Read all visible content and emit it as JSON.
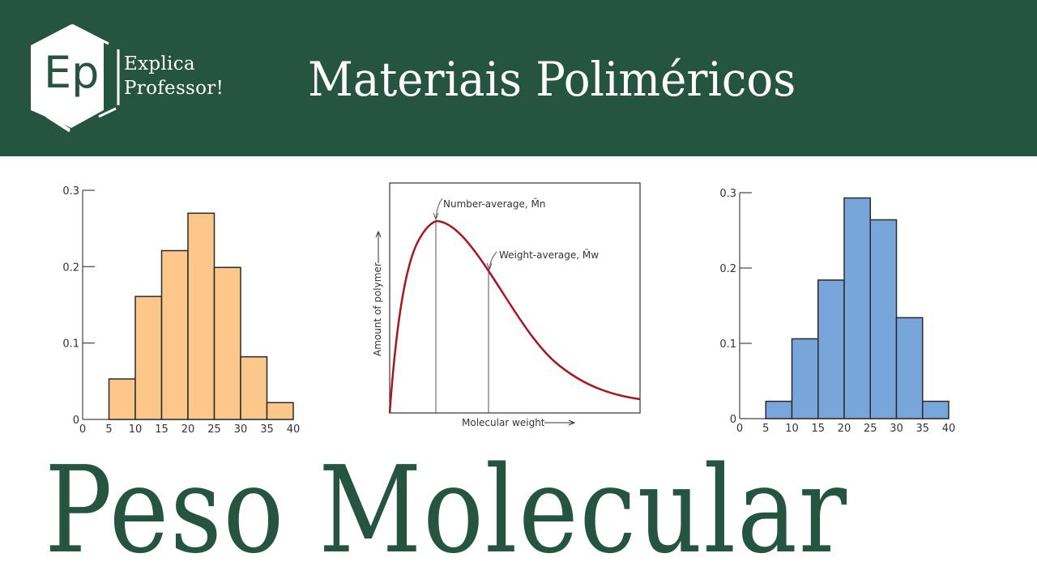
{
  "header": {
    "logo_initials": "Ep",
    "logo_line1": "Explica",
    "logo_line2": "Professor!",
    "title": "Materiais Poliméricos",
    "background_color": "#255440"
  },
  "main_title": "Peso Molecular",
  "chart_data": [
    {
      "type": "bar",
      "title": "",
      "xlabel": "",
      "ylabel": "",
      "categories": [
        "5-10",
        "10-15",
        "15-20",
        "20-25",
        "25-30",
        "30-35",
        "35-40"
      ],
      "x_ticks": [
        "0",
        "5",
        "10",
        "15",
        "20",
        "25",
        "30",
        "35",
        "40"
      ],
      "y_ticks": [
        "0",
        "0.1",
        "0.2",
        "0.3"
      ],
      "values": [
        0.053,
        0.161,
        0.221,
        0.27,
        0.199,
        0.082,
        0.022
      ],
      "ylim": [
        0,
        0.3
      ],
      "xlim": [
        0,
        40
      ],
      "color": "#FBC78A",
      "grid": false
    },
    {
      "type": "line",
      "title": "",
      "xlabel": "Molecular weight",
      "ylabel": "Amount of polymer",
      "description": "Molecular weight distribution curve",
      "annotations": [
        {
          "label": "Number-average, M̄n",
          "position": "curve peak"
        },
        {
          "label": "Weight-average, M̄w",
          "position": "right of peak, on descending side"
        }
      ],
      "color": "#A8161E",
      "grid": false
    },
    {
      "type": "bar",
      "title": "",
      "xlabel": "",
      "ylabel": "",
      "categories": [
        "5-10",
        "10-15",
        "15-20",
        "20-25",
        "25-30",
        "30-35",
        "35-40"
      ],
      "x_ticks": [
        "0",
        "5",
        "10",
        "15",
        "20",
        "25",
        "30",
        "35",
        "40"
      ],
      "y_ticks": [
        "0",
        "0.1",
        "0.2",
        "0.3"
      ],
      "values": [
        0.023,
        0.106,
        0.184,
        0.293,
        0.264,
        0.134,
        0.023
      ],
      "ylim": [
        0,
        0.3
      ],
      "xlim": [
        0,
        40
      ],
      "color": "#79A6DA",
      "grid": false
    }
  ]
}
